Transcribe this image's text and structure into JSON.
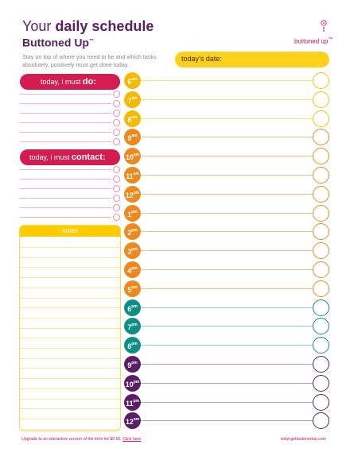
{
  "header": {
    "title_your": "Your",
    "title_daily": "daily schedule",
    "title_line2": "Buttoned Up",
    "trademark": "™",
    "intro": "Stay on top of where you need to be and which tasks absolutely, positively must get done today.",
    "logo_text": "buttoned up",
    "logo_tm": "™"
  },
  "date": {
    "label": "today’s date:"
  },
  "do_section": {
    "prefix": "today, i must ",
    "emphasis": "do:"
  },
  "contact_section": {
    "prefix": "today, i must ",
    "emphasis": "contact:"
  },
  "notes": {
    "label": "notes"
  },
  "hours": [
    {
      "num": "6",
      "suffix": "am"
    },
    {
      "num": "7",
      "suffix": "am"
    },
    {
      "num": "8",
      "suffix": "am"
    },
    {
      "num": "9",
      "suffix": "am"
    },
    {
      "num": "10",
      "suffix": "am"
    },
    {
      "num": "11",
      "suffix": "am"
    },
    {
      "num": "12",
      "suffix": "pm"
    },
    {
      "num": "1",
      "suffix": "pm"
    },
    {
      "num": "2",
      "suffix": "pm"
    },
    {
      "num": "3",
      "suffix": "pm"
    },
    {
      "num": "4",
      "suffix": "pm"
    },
    {
      "num": "5",
      "suffix": "pm"
    },
    {
      "num": "6",
      "suffix": "pm"
    },
    {
      "num": "7",
      "suffix": "pm"
    },
    {
      "num": "8",
      "suffix": "pm"
    },
    {
      "num": "9",
      "suffix": "pm"
    },
    {
      "num": "10",
      "suffix": "pm"
    },
    {
      "num": "11",
      "suffix": "pm"
    },
    {
      "num": "12",
      "suffix": "am"
    }
  ],
  "colors": {
    "brand": "#c8174b",
    "title": "#5b1e66",
    "yellow": "#ffd11a",
    "hour_fills": [
      "#f6b900",
      "#f6b900",
      "#f6b900",
      "#ee8a1d",
      "#ee8a1d",
      "#ee8a1d",
      "#ee8a1d",
      "#ee8a1d",
      "#ee8a1d",
      "#ee8a1d",
      "#ee8a1d",
      "#ee8a1d",
      "#0e8f86",
      "#0e8f86",
      "#0e8f86",
      "#5b1e66",
      "#5b1e66",
      "#5b1e66",
      "#5b1e66"
    ],
    "hour_lines": [
      "#ffe17a",
      "#ffe17a",
      "#ffe17a",
      "#f6bf8a",
      "#f6bf8a",
      "#f6bf8a",
      "#f6bf8a",
      "#f6bf8a",
      "#f6bf8a",
      "#f6bf8a",
      "#f6bf8a",
      "#f6bf8a",
      "#8fcfc9",
      "#8fcfc9",
      "#8fcfc9",
      "#b79ac0",
      "#b79ac0",
      "#b79ac0",
      "#b79ac0"
    ],
    "circle_borders": [
      "#f6c20a",
      "#f6c20a",
      "#f6c20a",
      "#ee8a1d",
      "#ee8a1d",
      "#ee8a1d",
      "#ee8a1d",
      "#ee8a1d",
      "#ee8a1d",
      "#ee8a1d",
      "#ee8a1d",
      "#ee8a1d",
      "#0e8f86",
      "#0e8f86",
      "#0e8f86",
      "#5b1e66",
      "#5b1e66",
      "#5b1e66",
      "#5b1e66"
    ]
  },
  "footer": {
    "upgrade_text": "Upgrade to an interactive version of the form for $0.95.",
    "click_here": "Click here",
    "website": "www.getbuttonedup.com"
  }
}
